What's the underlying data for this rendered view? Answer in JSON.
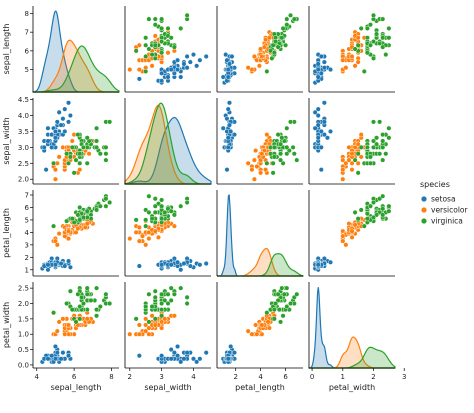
{
  "chart_data": {
    "type": "scatter",
    "variables": [
      "sepal_length",
      "sepal_width",
      "petal_length",
      "petal_width"
    ],
    "variable_labels": [
      "sepal_length",
      "sepal_width",
      "petal_length",
      "petal_width"
    ],
    "diagonal_type": "kde",
    "ranges": {
      "sepal_length": [
        3.8,
        8.4
      ],
      "sepal_width": [
        1.85,
        4.55
      ],
      "petal_length": [
        0.5,
        7.4
      ],
      "petal_width": [
        -0.1,
        2.7
      ]
    },
    "ticks": {
      "sepal_length": [
        4,
        6,
        8
      ],
      "sepal_width": [
        2,
        3,
        4
      ],
      "petal_length": [
        2,
        4,
        6
      ],
      "petal_width": [
        0,
        1,
        2,
        3
      ]
    },
    "y_ticks": {
      "sepal_length": [
        "5",
        "6",
        "7",
        "8"
      ],
      "sepal_width": [
        "2.0",
        "2.5",
        "3.0",
        "3.5",
        "4.0",
        "4.5"
      ],
      "petal_length": [
        "1",
        "2",
        "3",
        "4",
        "5",
        "6",
        "7"
      ],
      "petal_width": [
        "0.0",
        "0.5",
        "1.0",
        "1.5",
        "2.0",
        "2.5"
      ]
    },
    "legend": {
      "title": "species",
      "position": "right",
      "entries": [
        "setosa",
        "versicolor",
        "virginica"
      ]
    },
    "series": [
      {
        "name": "setosa",
        "color": "#1f77b4",
        "points": [
          [
            5.1,
            3.5,
            1.4,
            0.2
          ],
          [
            4.9,
            3.0,
            1.4,
            0.2
          ],
          [
            4.7,
            3.2,
            1.3,
            0.2
          ],
          [
            4.6,
            3.1,
            1.5,
            0.2
          ],
          [
            5.0,
            3.6,
            1.4,
            0.2
          ],
          [
            5.4,
            3.9,
            1.7,
            0.4
          ],
          [
            4.6,
            3.4,
            1.4,
            0.3
          ],
          [
            5.0,
            3.4,
            1.5,
            0.2
          ],
          [
            4.4,
            2.9,
            1.4,
            0.2
          ],
          [
            4.9,
            3.1,
            1.5,
            0.1
          ],
          [
            5.4,
            3.7,
            1.5,
            0.2
          ],
          [
            4.8,
            3.4,
            1.6,
            0.2
          ],
          [
            4.8,
            3.0,
            1.4,
            0.1
          ],
          [
            4.3,
            3.0,
            1.1,
            0.1
          ],
          [
            5.8,
            4.0,
            1.2,
            0.2
          ],
          [
            5.7,
            4.4,
            1.5,
            0.4
          ],
          [
            5.4,
            3.9,
            1.3,
            0.4
          ],
          [
            5.1,
            3.5,
            1.4,
            0.3
          ],
          [
            5.7,
            3.8,
            1.7,
            0.3
          ],
          [
            5.1,
            3.8,
            1.5,
            0.3
          ],
          [
            5.4,
            3.4,
            1.7,
            0.2
          ],
          [
            5.1,
            3.7,
            1.5,
            0.4
          ],
          [
            4.6,
            3.6,
            1.0,
            0.2
          ],
          [
            5.1,
            3.3,
            1.7,
            0.5
          ],
          [
            4.8,
            3.4,
            1.9,
            0.2
          ],
          [
            5.0,
            3.0,
            1.6,
            0.2
          ],
          [
            5.0,
            3.4,
            1.6,
            0.4
          ],
          [
            5.2,
            3.5,
            1.5,
            0.2
          ],
          [
            5.2,
            3.4,
            1.4,
            0.2
          ],
          [
            4.7,
            3.2,
            1.6,
            0.2
          ],
          [
            4.8,
            3.1,
            1.6,
            0.2
          ],
          [
            5.4,
            3.4,
            1.5,
            0.4
          ],
          [
            5.2,
            4.1,
            1.5,
            0.1
          ],
          [
            5.5,
            4.2,
            1.4,
            0.2
          ],
          [
            4.9,
            3.1,
            1.5,
            0.2
          ],
          [
            5.0,
            3.2,
            1.2,
            0.2
          ],
          [
            5.5,
            3.5,
            1.3,
            0.2
          ],
          [
            4.9,
            3.6,
            1.4,
            0.1
          ],
          [
            4.4,
            3.0,
            1.3,
            0.2
          ],
          [
            5.1,
            3.4,
            1.5,
            0.2
          ],
          [
            5.0,
            3.5,
            1.3,
            0.3
          ],
          [
            4.5,
            2.3,
            1.3,
            0.3
          ],
          [
            4.4,
            3.2,
            1.3,
            0.2
          ],
          [
            5.0,
            3.5,
            1.6,
            0.6
          ],
          [
            5.1,
            3.8,
            1.9,
            0.4
          ],
          [
            4.8,
            3.0,
            1.4,
            0.3
          ],
          [
            5.1,
            3.8,
            1.6,
            0.2
          ],
          [
            4.6,
            3.2,
            1.4,
            0.2
          ],
          [
            5.3,
            3.7,
            1.5,
            0.2
          ],
          [
            5.0,
            3.3,
            1.4,
            0.2
          ]
        ]
      },
      {
        "name": "versicolor",
        "color": "#ff7f0e",
        "points": [
          [
            7.0,
            3.2,
            4.7,
            1.4
          ],
          [
            6.4,
            3.2,
            4.5,
            1.5
          ],
          [
            6.9,
            3.1,
            4.9,
            1.5
          ],
          [
            5.5,
            2.3,
            4.0,
            1.3
          ],
          [
            6.5,
            2.8,
            4.6,
            1.5
          ],
          [
            5.7,
            2.8,
            4.5,
            1.3
          ],
          [
            6.3,
            3.3,
            4.7,
            1.6
          ],
          [
            4.9,
            2.4,
            3.3,
            1.0
          ],
          [
            6.6,
            2.9,
            4.6,
            1.3
          ],
          [
            5.2,
            2.7,
            3.9,
            1.4
          ],
          [
            5.0,
            2.0,
            3.5,
            1.0
          ],
          [
            5.9,
            3.0,
            4.2,
            1.5
          ],
          [
            6.0,
            2.2,
            4.0,
            1.0
          ],
          [
            6.1,
            2.9,
            4.7,
            1.4
          ],
          [
            5.6,
            2.9,
            3.6,
            1.3
          ],
          [
            6.7,
            3.1,
            4.4,
            1.4
          ],
          [
            5.6,
            3.0,
            4.5,
            1.5
          ],
          [
            5.8,
            2.7,
            4.1,
            1.0
          ],
          [
            6.2,
            2.2,
            4.5,
            1.5
          ],
          [
            5.6,
            2.5,
            3.9,
            1.1
          ],
          [
            5.9,
            3.2,
            4.8,
            1.8
          ],
          [
            6.1,
            2.8,
            4.0,
            1.3
          ],
          [
            6.3,
            2.5,
            4.9,
            1.5
          ],
          [
            6.1,
            2.8,
            4.7,
            1.2
          ],
          [
            6.4,
            2.9,
            4.3,
            1.3
          ],
          [
            6.6,
            3.0,
            4.4,
            1.4
          ],
          [
            6.8,
            2.8,
            4.8,
            1.4
          ],
          [
            6.7,
            3.0,
            5.0,
            1.7
          ],
          [
            6.0,
            2.9,
            4.5,
            1.5
          ],
          [
            5.7,
            2.6,
            3.5,
            1.0
          ],
          [
            5.5,
            2.4,
            3.8,
            1.1
          ],
          [
            5.5,
            2.4,
            3.7,
            1.0
          ],
          [
            5.8,
            2.7,
            3.9,
            1.2
          ],
          [
            6.0,
            2.7,
            5.1,
            1.6
          ],
          [
            5.4,
            3.0,
            4.5,
            1.5
          ],
          [
            6.0,
            3.4,
            4.5,
            1.6
          ],
          [
            6.7,
            3.1,
            4.7,
            1.5
          ],
          [
            6.3,
            2.3,
            4.4,
            1.3
          ],
          [
            5.6,
            3.0,
            4.1,
            1.3
          ],
          [
            5.5,
            2.5,
            4.0,
            1.3
          ],
          [
            5.5,
            2.6,
            4.4,
            1.2
          ],
          [
            6.1,
            3.0,
            4.6,
            1.4
          ],
          [
            5.8,
            2.6,
            4.0,
            1.2
          ],
          [
            5.0,
            2.3,
            3.3,
            1.0
          ],
          [
            5.6,
            2.7,
            4.2,
            1.3
          ],
          [
            5.7,
            3.0,
            4.2,
            1.2
          ],
          [
            5.7,
            2.9,
            4.2,
            1.3
          ],
          [
            6.2,
            2.9,
            4.3,
            1.3
          ],
          [
            5.1,
            2.5,
            3.0,
            1.1
          ],
          [
            5.7,
            2.8,
            4.1,
            1.3
          ]
        ]
      },
      {
        "name": "virginica",
        "color": "#2ca02c",
        "points": [
          [
            6.3,
            3.3,
            6.0,
            2.5
          ],
          [
            5.8,
            2.7,
            5.1,
            1.9
          ],
          [
            7.1,
            3.0,
            5.9,
            2.1
          ],
          [
            6.3,
            2.9,
            5.6,
            1.8
          ],
          [
            6.5,
            3.0,
            5.8,
            2.2
          ],
          [
            7.6,
            3.0,
            6.6,
            2.1
          ],
          [
            4.9,
            2.5,
            4.5,
            1.7
          ],
          [
            7.3,
            2.9,
            6.3,
            1.8
          ],
          [
            6.7,
            2.5,
            5.8,
            1.8
          ],
          [
            7.2,
            3.6,
            6.1,
            2.5
          ],
          [
            6.5,
            3.2,
            5.1,
            2.0
          ],
          [
            6.4,
            2.7,
            5.3,
            1.9
          ],
          [
            6.8,
            3.0,
            5.5,
            2.1
          ],
          [
            5.7,
            2.5,
            5.0,
            2.0
          ],
          [
            5.8,
            2.8,
            5.1,
            2.4
          ],
          [
            6.4,
            3.2,
            5.3,
            2.3
          ],
          [
            6.5,
            3.0,
            5.5,
            1.8
          ],
          [
            7.7,
            3.8,
            6.7,
            2.2
          ],
          [
            7.7,
            2.6,
            6.9,
            2.3
          ],
          [
            6.0,
            2.2,
            5.0,
            1.5
          ],
          [
            6.9,
            3.2,
            5.7,
            2.3
          ],
          [
            5.6,
            2.8,
            4.9,
            2.0
          ],
          [
            7.7,
            2.8,
            6.7,
            2.0
          ],
          [
            6.3,
            2.7,
            4.9,
            1.8
          ],
          [
            6.7,
            3.3,
            5.7,
            2.1
          ],
          [
            7.2,
            3.2,
            6.0,
            1.8
          ],
          [
            6.2,
            2.8,
            4.8,
            1.8
          ],
          [
            6.1,
            3.0,
            4.9,
            1.8
          ],
          [
            6.4,
            2.8,
            5.6,
            2.1
          ],
          [
            7.2,
            3.0,
            5.8,
            1.6
          ],
          [
            7.4,
            2.8,
            6.1,
            1.9
          ],
          [
            7.9,
            3.8,
            6.4,
            2.0
          ],
          [
            6.4,
            2.8,
            5.6,
            2.2
          ],
          [
            6.3,
            2.8,
            5.1,
            1.5
          ],
          [
            6.1,
            2.6,
            5.6,
            1.4
          ],
          [
            7.7,
            3.0,
            6.1,
            2.3
          ],
          [
            6.3,
            3.4,
            5.6,
            2.4
          ],
          [
            6.4,
            3.1,
            5.5,
            1.8
          ],
          [
            6.0,
            3.0,
            4.8,
            1.8
          ],
          [
            6.9,
            3.1,
            5.4,
            2.1
          ],
          [
            6.7,
            3.1,
            5.6,
            2.4
          ],
          [
            6.9,
            3.1,
            5.1,
            2.3
          ],
          [
            5.8,
            2.7,
            5.1,
            1.9
          ],
          [
            6.8,
            3.2,
            5.9,
            2.3
          ],
          [
            6.7,
            3.3,
            5.7,
            2.5
          ],
          [
            6.7,
            3.0,
            5.2,
            2.3
          ],
          [
            6.3,
            2.5,
            5.0,
            1.9
          ],
          [
            6.5,
            3.0,
            5.2,
            2.0
          ],
          [
            6.2,
            3.4,
            5.4,
            2.3
          ],
          [
            5.9,
            3.0,
            5.1,
            1.8
          ]
        ]
      }
    ]
  }
}
